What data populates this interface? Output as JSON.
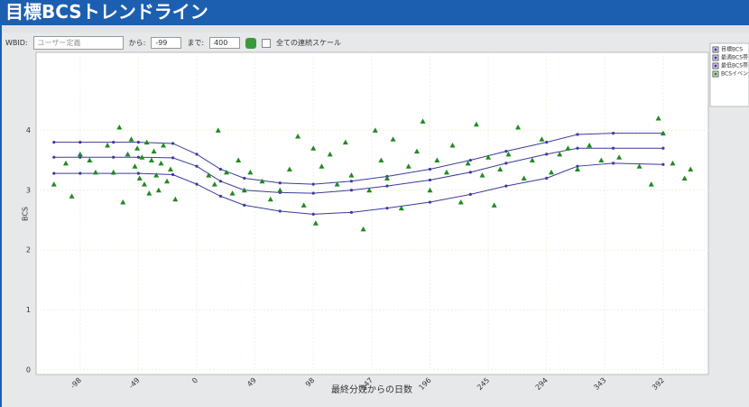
{
  "header_title": "目標BCSトレンドライン",
  "toolbar": {
    "wbid_label": "WBID:",
    "wbid_value": "ユーザー定義",
    "from_label": "から:",
    "from_value": "-99",
    "to_label": "まで:",
    "to_value": "400",
    "scale_label": "全ての連続スケール"
  },
  "chart_data": {
    "type": "line",
    "y_label": "BCS",
    "x_label": "最終分娩からの日数",
    "xlim": [
      -135,
      430
    ],
    "ylim": [
      0,
      5.3
    ],
    "xticks": [
      -98,
      -49,
      0,
      49,
      98,
      147,
      196,
      245,
      294,
      343,
      392
    ],
    "yticks": [
      0,
      1,
      2,
      3,
      4
    ],
    "grid": true,
    "series": [
      {
        "name": "目標BCS",
        "type": "line",
        "color": "#3b3b9e",
        "x": [
          -120,
          -98,
          -70,
          -49,
          -20,
          0,
          20,
          40,
          70,
          98,
          130,
          160,
          196,
          230,
          260,
          294,
          320,
          350,
          392
        ],
        "values": [
          3.55,
          3.55,
          3.55,
          3.55,
          3.54,
          3.4,
          3.15,
          3.0,
          2.96,
          2.95,
          3.0,
          3.07,
          3.17,
          3.3,
          3.45,
          3.6,
          3.7,
          3.7,
          3.7
        ]
      },
      {
        "name": "最適BCS帯",
        "type": "line",
        "color": "#3b3b9e",
        "x": [
          -120,
          -98,
          -70,
          -49,
          -20,
          0,
          20,
          40,
          70,
          98,
          130,
          160,
          196,
          230,
          260,
          294,
          320,
          350,
          392
        ],
        "values": [
          3.8,
          3.8,
          3.8,
          3.8,
          3.78,
          3.6,
          3.35,
          3.2,
          3.12,
          3.1,
          3.15,
          3.23,
          3.35,
          3.5,
          3.65,
          3.8,
          3.93,
          3.95,
          3.95
        ]
      },
      {
        "name": "最低BCS帯",
        "type": "line",
        "color": "#3b3b9e",
        "x": [
          -120,
          -98,
          -70,
          -49,
          -20,
          0,
          20,
          40,
          70,
          98,
          130,
          160,
          196,
          230,
          260,
          294,
          320,
          350,
          392
        ],
        "values": [
          3.28,
          3.28,
          3.28,
          3.28,
          3.26,
          3.1,
          2.9,
          2.75,
          2.65,
          2.6,
          2.63,
          2.7,
          2.8,
          2.93,
          3.07,
          3.2,
          3.4,
          3.45,
          3.43
        ]
      },
      {
        "name": "BCSイベント",
        "type": "scatter",
        "color": "#1f8a1f",
        "x": [
          -120,
          -110,
          -105,
          -98,
          -90,
          -85,
          -75,
          -70,
          -65,
          -62,
          -58,
          -55,
          -52,
          -50,
          -48,
          -46,
          -44,
          -42,
          -40,
          -38,
          -36,
          -34,
          -32,
          -30,
          -28,
          -25,
          -22,
          -18,
          10,
          15,
          18,
          25,
          30,
          35,
          40,
          45,
          55,
          62,
          70,
          78,
          85,
          90,
          98,
          100,
          105,
          112,
          118,
          125,
          130,
          140,
          145,
          150,
          155,
          160,
          165,
          172,
          178,
          185,
          190,
          196,
          202,
          210,
          215,
          222,
          228,
          235,
          240,
          245,
          250,
          255,
          262,
          270,
          275,
          282,
          290,
          298,
          305,
          312,
          320,
          330,
          340,
          355,
          372,
          382,
          388,
          392,
          400,
          410,
          415
        ],
        "values": [
          3.1,
          3.45,
          2.9,
          3.6,
          3.5,
          3.3,
          3.75,
          3.3,
          4.05,
          2.8,
          3.6,
          3.85,
          3.4,
          3.7,
          3.2,
          3.55,
          3.1,
          3.8,
          2.95,
          3.5,
          3.65,
          3.25,
          3.0,
          3.45,
          3.75,
          3.15,
          3.35,
          2.85,
          3.25,
          3.1,
          4.0,
          3.3,
          2.95,
          3.5,
          3.0,
          3.3,
          3.15,
          2.85,
          3.0,
          3.35,
          3.9,
          2.75,
          3.7,
          2.45,
          3.4,
          3.6,
          3.1,
          3.8,
          3.25,
          2.35,
          3.0,
          4.0,
          3.5,
          3.2,
          3.85,
          2.7,
          3.4,
          3.65,
          4.15,
          3.0,
          3.5,
          3.3,
          3.75,
          2.8,
          3.45,
          4.1,
          3.25,
          3.55,
          2.75,
          3.35,
          3.6,
          4.05,
          3.2,
          3.5,
          3.85,
          3.3,
          3.6,
          3.7,
          3.35,
          3.75,
          3.5,
          3.55,
          3.4,
          3.1,
          4.2,
          3.95,
          3.45,
          3.2,
          3.35
        ]
      }
    ]
  }
}
